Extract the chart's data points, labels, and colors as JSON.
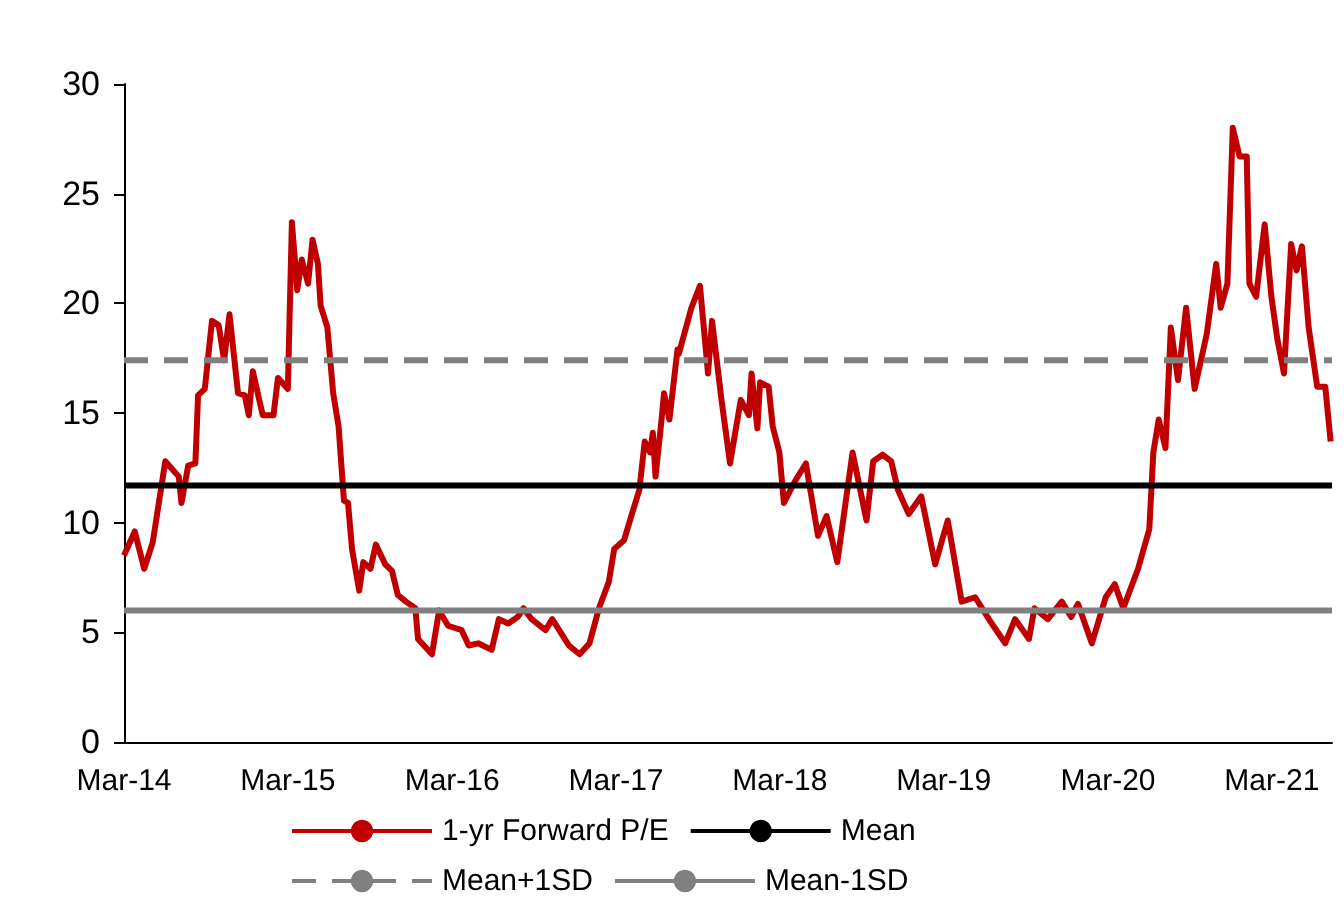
{
  "chart_data": {
    "type": "line",
    "xlim": [
      "2014-03-01",
      "2021-07-13"
    ],
    "xticks": [
      {
        "value": "2014-03-01",
        "label": "Mar-14"
      },
      {
        "value": "2015-03-01",
        "label": "Mar-15"
      },
      {
        "value": "2016-03-01",
        "label": "Mar-16"
      },
      {
        "value": "2017-03-01",
        "label": "Mar-17"
      },
      {
        "value": "2018-03-01",
        "label": "Mar-18"
      },
      {
        "value": "2019-03-01",
        "label": "Mar-19"
      },
      {
        "value": "2020-03-01",
        "label": "Mar-20"
      },
      {
        "value": "2021-03-01",
        "label": "Mar-21"
      }
    ],
    "ylim": [
      0,
      30
    ],
    "yticks": [
      0,
      5,
      10,
      15,
      20,
      25,
      30
    ],
    "grid": false,
    "legend": "bottom",
    "marker": "none",
    "series": [
      {
        "name": "1-yr Forward P/E",
        "color": "#c00000",
        "line_style": "solid",
        "x": [
          "2014-03-01",
          "2014-03-25",
          "2014-04-15",
          "2014-05-04",
          "2014-06-01",
          "2014-07-01",
          "2014-07-07",
          "2014-07-22",
          "2014-08-07",
          "2014-08-13",
          "2014-08-28",
          "2014-09-13",
          "2014-09-28",
          "2014-10-10",
          "2014-10-22",
          "2014-11-10",
          "2014-11-25",
          "2014-12-04",
          "2014-12-13",
          "2015-01-04",
          "2015-01-28",
          "2015-02-07",
          "2015-03-01",
          "2015-03-10",
          "2015-03-22",
          "2015-04-01",
          "2015-04-15",
          "2015-04-25",
          "2015-05-07",
          "2015-05-13",
          "2015-05-28",
          "2015-06-10",
          "2015-06-22",
          "2015-07-04",
          "2015-07-13",
          "2015-07-22",
          "2015-08-07",
          "2015-08-16",
          "2015-09-01",
          "2015-09-13",
          "2015-10-04",
          "2015-10-19",
          "2015-11-01",
          "2015-11-19",
          "2015-12-10",
          "2015-12-16",
          "2016-01-16",
          "2016-02-01",
          "2016-02-21",
          "2016-03-22",
          "2016-04-07",
          "2016-04-28",
          "2016-05-28",
          "2016-06-13",
          "2016-07-04",
          "2016-07-25",
          "2016-08-07",
          "2016-08-25",
          "2016-09-25",
          "2016-10-10",
          "2016-11-16",
          "2016-12-10",
          "2017-01-01",
          "2017-01-22",
          "2017-02-13",
          "2017-02-25",
          "2017-03-19",
          "2017-04-04",
          "2017-04-22",
          "2017-05-04",
          "2017-05-16",
          "2017-05-22",
          "2017-05-28",
          "2017-06-10",
          "2017-06-16",
          "2017-06-28",
          "2017-07-16",
          "2017-07-19",
          "2017-08-16",
          "2017-09-04",
          "2017-09-22",
          "2017-10-01",
          "2017-10-22",
          "2017-11-10",
          "2017-12-04",
          "2017-12-22",
          "2017-12-28",
          "2018-01-10",
          "2018-01-16",
          "2018-02-04",
          "2018-02-13",
          "2018-02-28",
          "2018-03-10",
          "2018-04-04",
          "2018-04-28",
          "2018-05-25",
          "2018-06-13",
          "2018-07-07",
          "2018-08-10",
          "2018-09-10",
          "2018-09-25",
          "2018-10-16",
          "2018-11-04",
          "2018-11-19",
          "2018-12-13",
          "2019-01-10",
          "2019-02-10",
          "2019-03-10",
          "2019-04-10",
          "2019-05-10",
          "2019-06-16",
          "2019-07-16",
          "2019-08-07",
          "2019-09-07",
          "2019-09-19",
          "2019-10-19",
          "2019-11-19",
          "2019-12-10",
          "2019-12-25",
          "2020-01-25",
          "2020-02-25",
          "2020-03-16",
          "2020-04-04",
          "2020-05-07",
          "2020-06-01",
          "2020-06-10",
          "2020-06-22",
          "2020-07-07",
          "2020-07-19",
          "2020-08-04",
          "2020-08-22",
          "2020-09-10",
          "2020-10-07",
          "2020-10-28",
          "2020-11-07",
          "2020-11-22",
          "2020-12-04",
          "2020-12-19",
          "2021-01-04",
          "2021-01-10",
          "2021-01-25",
          "2021-02-13",
          "2021-02-28",
          "2021-03-13",
          "2021-03-28",
          "2021-04-13",
          "2021-04-25",
          "2021-05-07",
          "2021-05-22",
          "2021-06-10",
          "2021-06-28",
          "2021-07-10"
        ],
        "values": [
          8.5,
          9.6,
          7.9,
          9.1,
          12.8,
          12.1,
          10.9,
          12.6,
          12.7,
          15.8,
          16.1,
          19.2,
          19.0,
          17.4,
          19.5,
          15.9,
          15.8,
          14.9,
          16.9,
          14.9,
          14.9,
          16.6,
          16.1,
          23.7,
          20.6,
          22.0,
          20.9,
          22.9,
          21.8,
          19.9,
          18.9,
          15.9,
          14.4,
          11.0,
          10.9,
          8.8,
          6.9,
          8.2,
          7.9,
          9.0,
          8.1,
          7.8,
          6.7,
          6.4,
          6.1,
          4.7,
          4.0,
          6.0,
          5.3,
          5.1,
          4.4,
          4.5,
          4.2,
          5.6,
          5.4,
          5.7,
          6.1,
          5.6,
          5.1,
          5.6,
          4.4,
          4.0,
          4.5,
          6.1,
          7.3,
          8.8,
          9.2,
          10.3,
          11.5,
          13.7,
          13.2,
          14.1,
          12.1,
          14.6,
          15.9,
          14.7,
          17.9,
          17.7,
          19.8,
          20.8,
          16.8,
          19.2,
          15.6,
          12.7,
          15.6,
          14.9,
          16.8,
          14.3,
          16.4,
          16.2,
          14.4,
          13.2,
          10.9,
          11.9,
          12.7,
          9.4,
          10.3,
          8.2,
          13.2,
          10.1,
          12.8,
          13.1,
          12.8,
          11.5,
          10.4,
          11.2,
          8.1,
          10.1,
          6.4,
          6.6,
          5.4,
          4.5,
          5.6,
          4.7,
          6.1,
          5.6,
          6.4,
          5.7,
          6.3,
          4.5,
          6.6,
          7.2,
          6.1,
          7.9,
          9.7,
          13.2,
          14.7,
          13.4,
          18.9,
          16.5,
          19.8,
          16.1,
          18.6,
          21.8,
          19.8,
          20.9,
          28.0,
          26.7,
          26.7,
          20.9,
          20.3,
          23.6,
          20.3,
          18.4,
          16.8,
          22.7,
          21.5,
          22.6,
          18.9,
          16.2,
          16.2,
          13.7
        ]
      },
      {
        "name": "Mean",
        "color": "#000000",
        "line_style": "solid",
        "x": [
          "2014-03-01",
          "2021-07-13"
        ],
        "values": [
          11.7,
          11.7
        ]
      },
      {
        "name": "Mean+1SD",
        "color": "#808080",
        "line_style": "dashed",
        "x": [
          "2014-03-01",
          "2021-07-13"
        ],
        "values": [
          17.4,
          17.4
        ]
      },
      {
        "name": "Mean-1SD",
        "color": "#808080",
        "line_style": "solid",
        "x": [
          "2014-03-01",
          "2021-07-13"
        ],
        "values": [
          6.0,
          6.0
        ]
      }
    ]
  }
}
